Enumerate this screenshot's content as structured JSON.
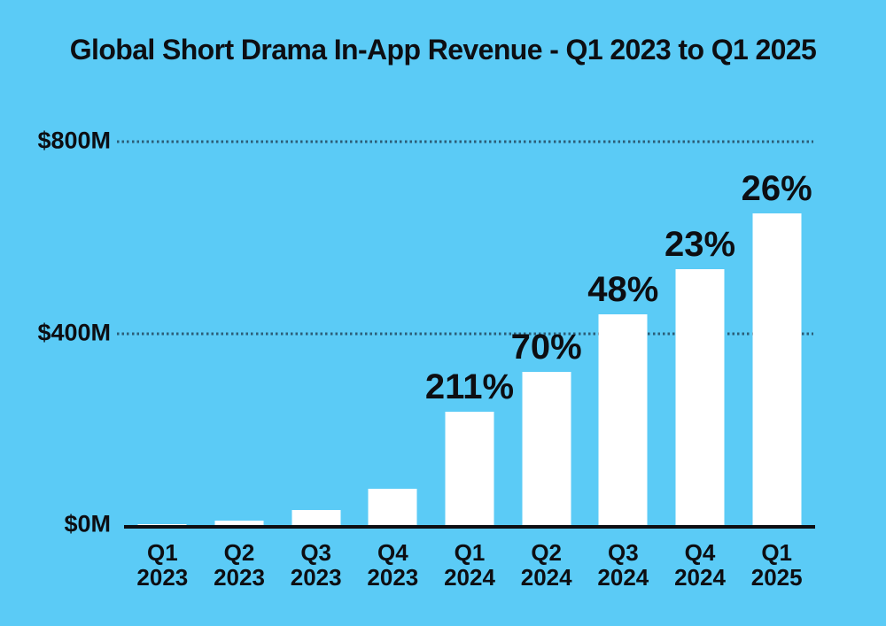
{
  "colors": {
    "background": "#5BCBF6",
    "bar": "#FFFFFF",
    "text": "#0D0E12",
    "axis": "#0D0E12",
    "grid": "#2B5D77"
  },
  "title": "Global Short Drama In-App Revenue - Q1 2023 to Q1 2025",
  "chart_data": {
    "type": "bar",
    "title": "Global Short Drama In-App Revenue - Q1 2023 to Q1 2025",
    "categories": [
      "Q1 2023",
      "Q2 2023",
      "Q3 2023",
      "Q4 2023",
      "Q1 2024",
      "Q2 2024",
      "Q3 2024",
      "Q4 2024",
      "Q1 2025"
    ],
    "values": [
      2,
      9,
      31,
      75,
      237,
      319,
      440,
      534,
      650
    ],
    "unit": "USD millions",
    "growth_labels": [
      "",
      "",
      "",
      "",
      "211%",
      "70%",
      "48%",
      "23%",
      "26%"
    ],
    "xlabel": "",
    "ylabel": "",
    "ylim": [
      0,
      800
    ],
    "yticks": [
      {
        "value": 0,
        "label": "$0M"
      },
      {
        "value": 400,
        "label": "$400M"
      },
      {
        "value": 800,
        "label": "$800M"
      }
    ],
    "grid": "horizontal dotted lines at $400M and $800M",
    "legend": "none",
    "bar_color": "#FFFFFF",
    "label_color": "#0D0E12"
  }
}
